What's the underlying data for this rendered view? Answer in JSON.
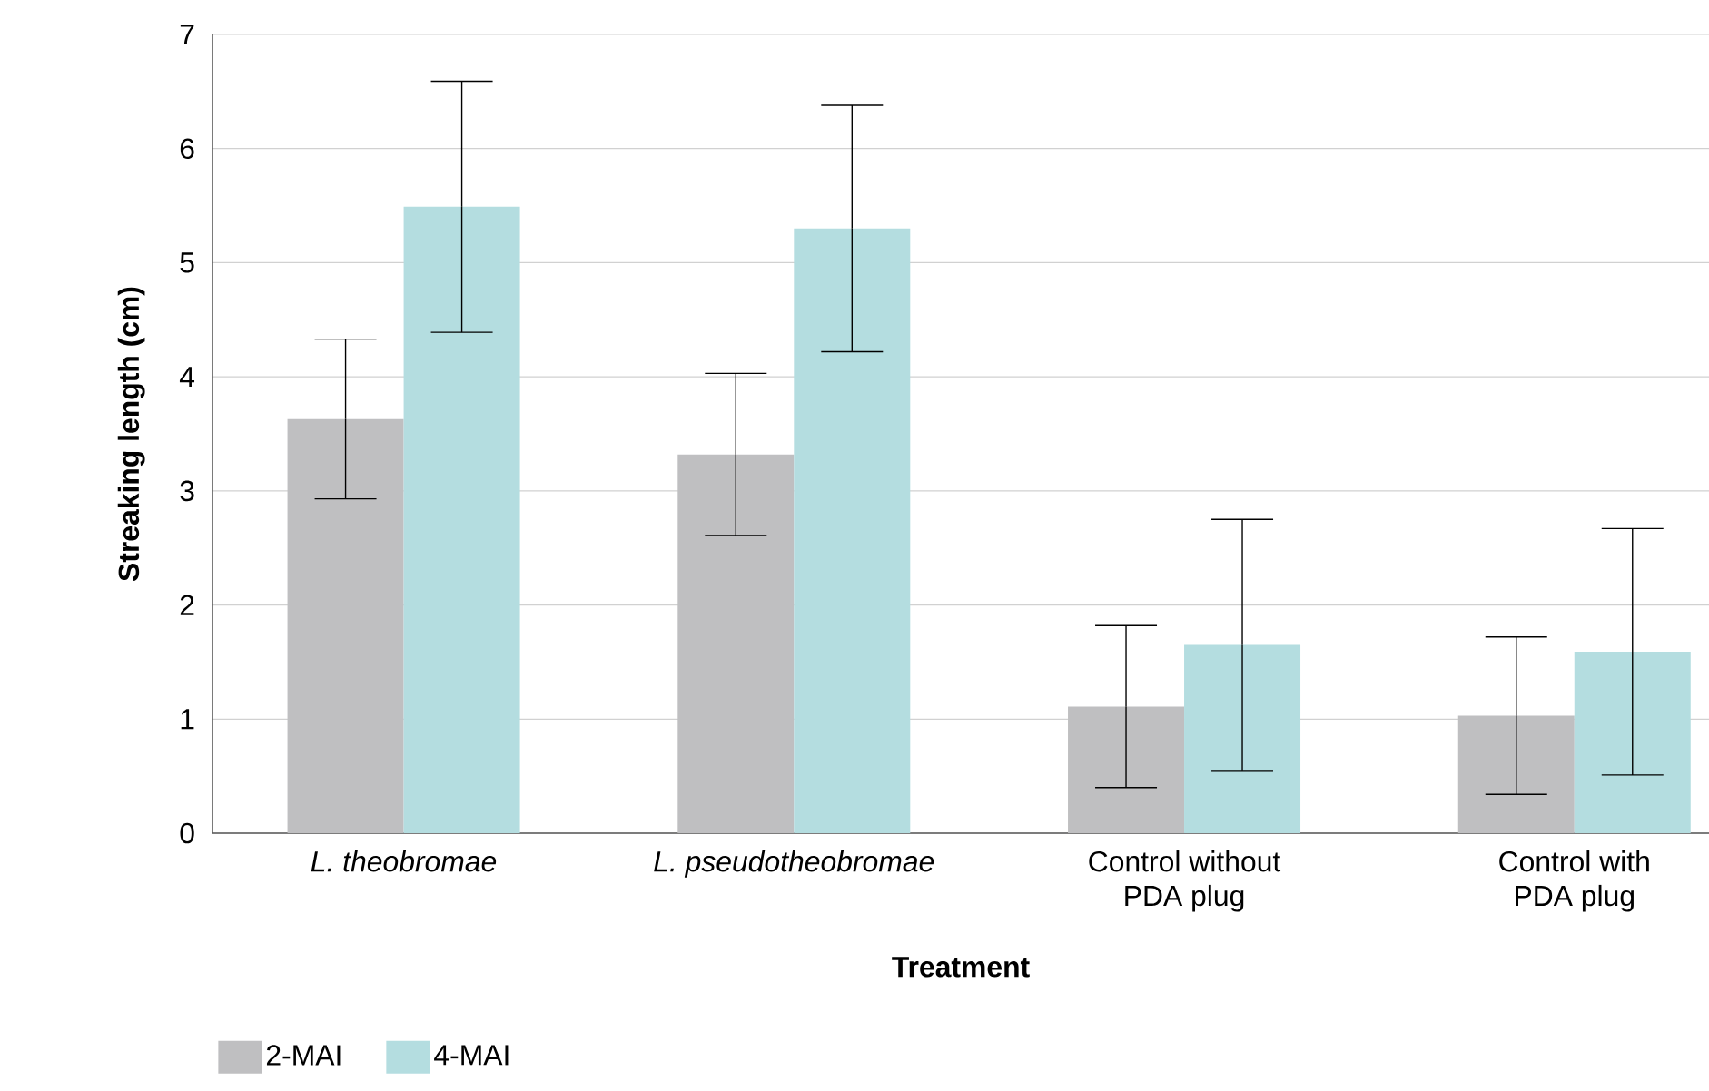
{
  "chart_data": {
    "type": "bar",
    "xlabel": "Treatment",
    "ylabel": "Streaking length (cm)",
    "categories": [
      "*L. theobromae*",
      "*L. pseudotheobromae*",
      "Control  without\nPDA plug",
      "Control  with\nPDA plug"
    ],
    "ylim": [
      0,
      7
    ],
    "yticks": [
      0,
      1,
      2,
      3,
      4,
      5,
      6,
      7
    ],
    "grid": "y",
    "legend": "bottom left",
    "series": [
      {
        "name": "2-MAI",
        "color": "#bfbfc1",
        "values": [
          3.63,
          3.32,
          1.11,
          1.03
        ],
        "errors": [
          0.7,
          0.71,
          0.71,
          0.69
        ]
      },
      {
        "name": "4-MAI",
        "color": "#b4dde0",
        "values": [
          5.49,
          5.3,
          1.65,
          1.59
        ],
        "errors": [
          1.1,
          1.08,
          1.1,
          1.08
        ]
      }
    ]
  }
}
